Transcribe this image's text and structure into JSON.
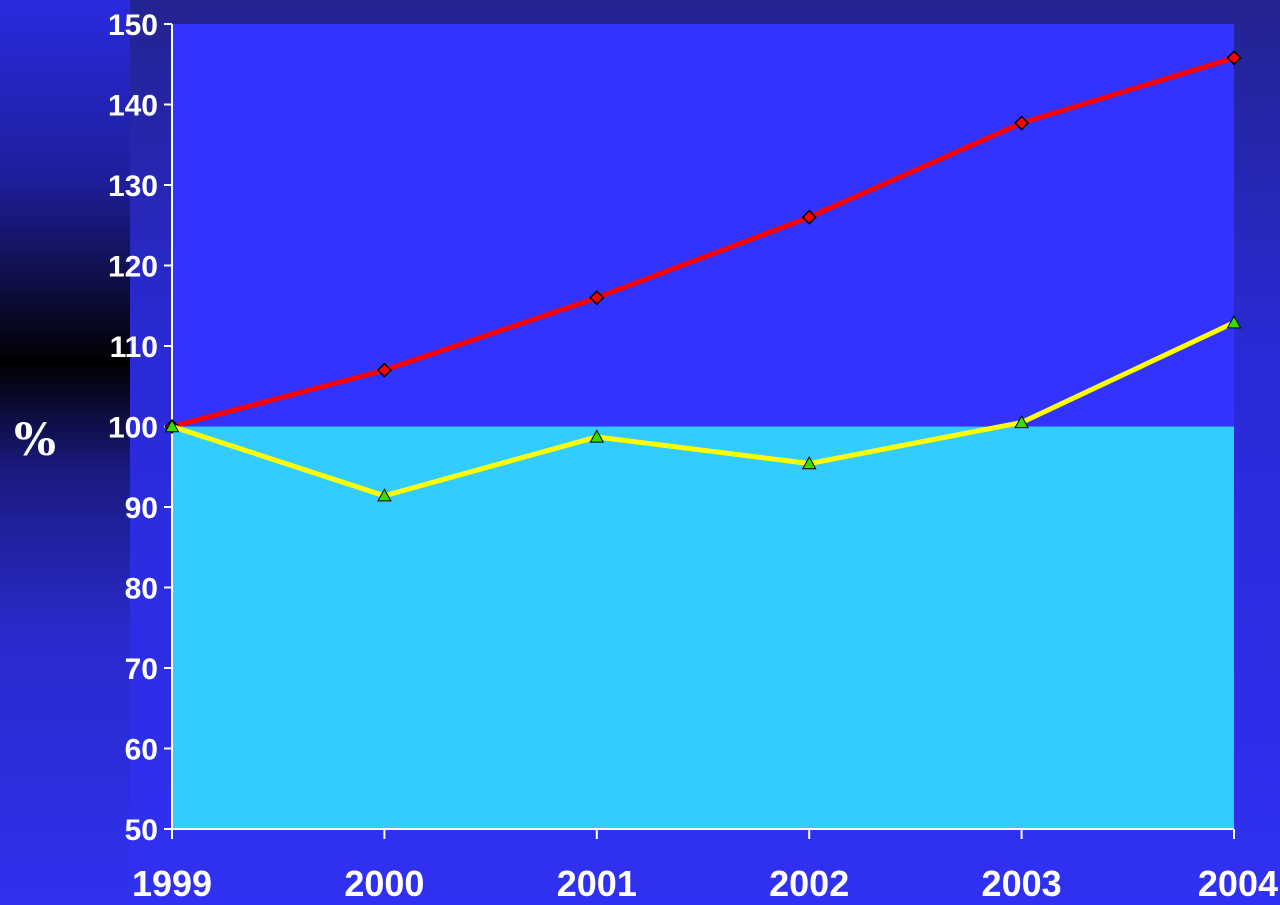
{
  "chart_data": {
    "type": "line",
    "x": [
      "1999",
      "2000",
      "2001",
      "2002",
      "2003",
      "2004"
    ],
    "ylabel": "%",
    "ylim": [
      50,
      150
    ],
    "yticks": [
      50,
      60,
      70,
      80,
      90,
      100,
      110,
      120,
      130,
      140,
      150
    ],
    "baseline": 100,
    "series": [
      {
        "values": [
          100,
          107,
          116,
          126,
          137.7,
          145.8
        ],
        "color": "#ff0000",
        "marker": "diamond",
        "marker_color": "#ff0000"
      },
      {
        "values": [
          100,
          91.4,
          98.7,
          95.4,
          100.5,
          112.9
        ],
        "color": "#ffff00",
        "marker": "triangle",
        "marker_color": "#33dd00"
      }
    ],
    "colors": {
      "plot_upper": "#3333ff",
      "plot_lower": "#33ccff",
      "text": "#ffffff"
    }
  }
}
